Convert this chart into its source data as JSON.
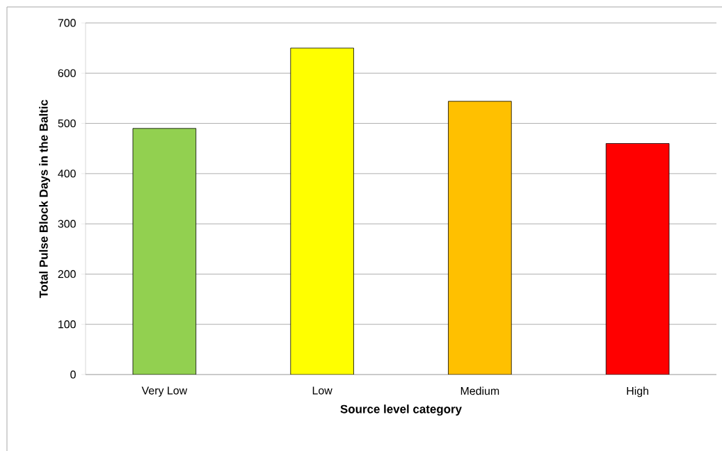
{
  "chart_data": {
    "type": "bar",
    "categories": [
      "Very Low",
      "Low",
      "Medium",
      "High"
    ],
    "values": [
      490,
      650,
      544,
      460
    ],
    "colors": [
      "#92d050",
      "#ffff00",
      "#ffc000",
      "#ff0000"
    ],
    "xlabel": "Source level category",
    "ylabel": "Total Pulse Block Days in the Baltic",
    "ylim": [
      0,
      700
    ],
    "yticks": [
      0,
      100,
      200,
      300,
      400,
      500,
      600,
      700
    ],
    "grid": "y"
  }
}
